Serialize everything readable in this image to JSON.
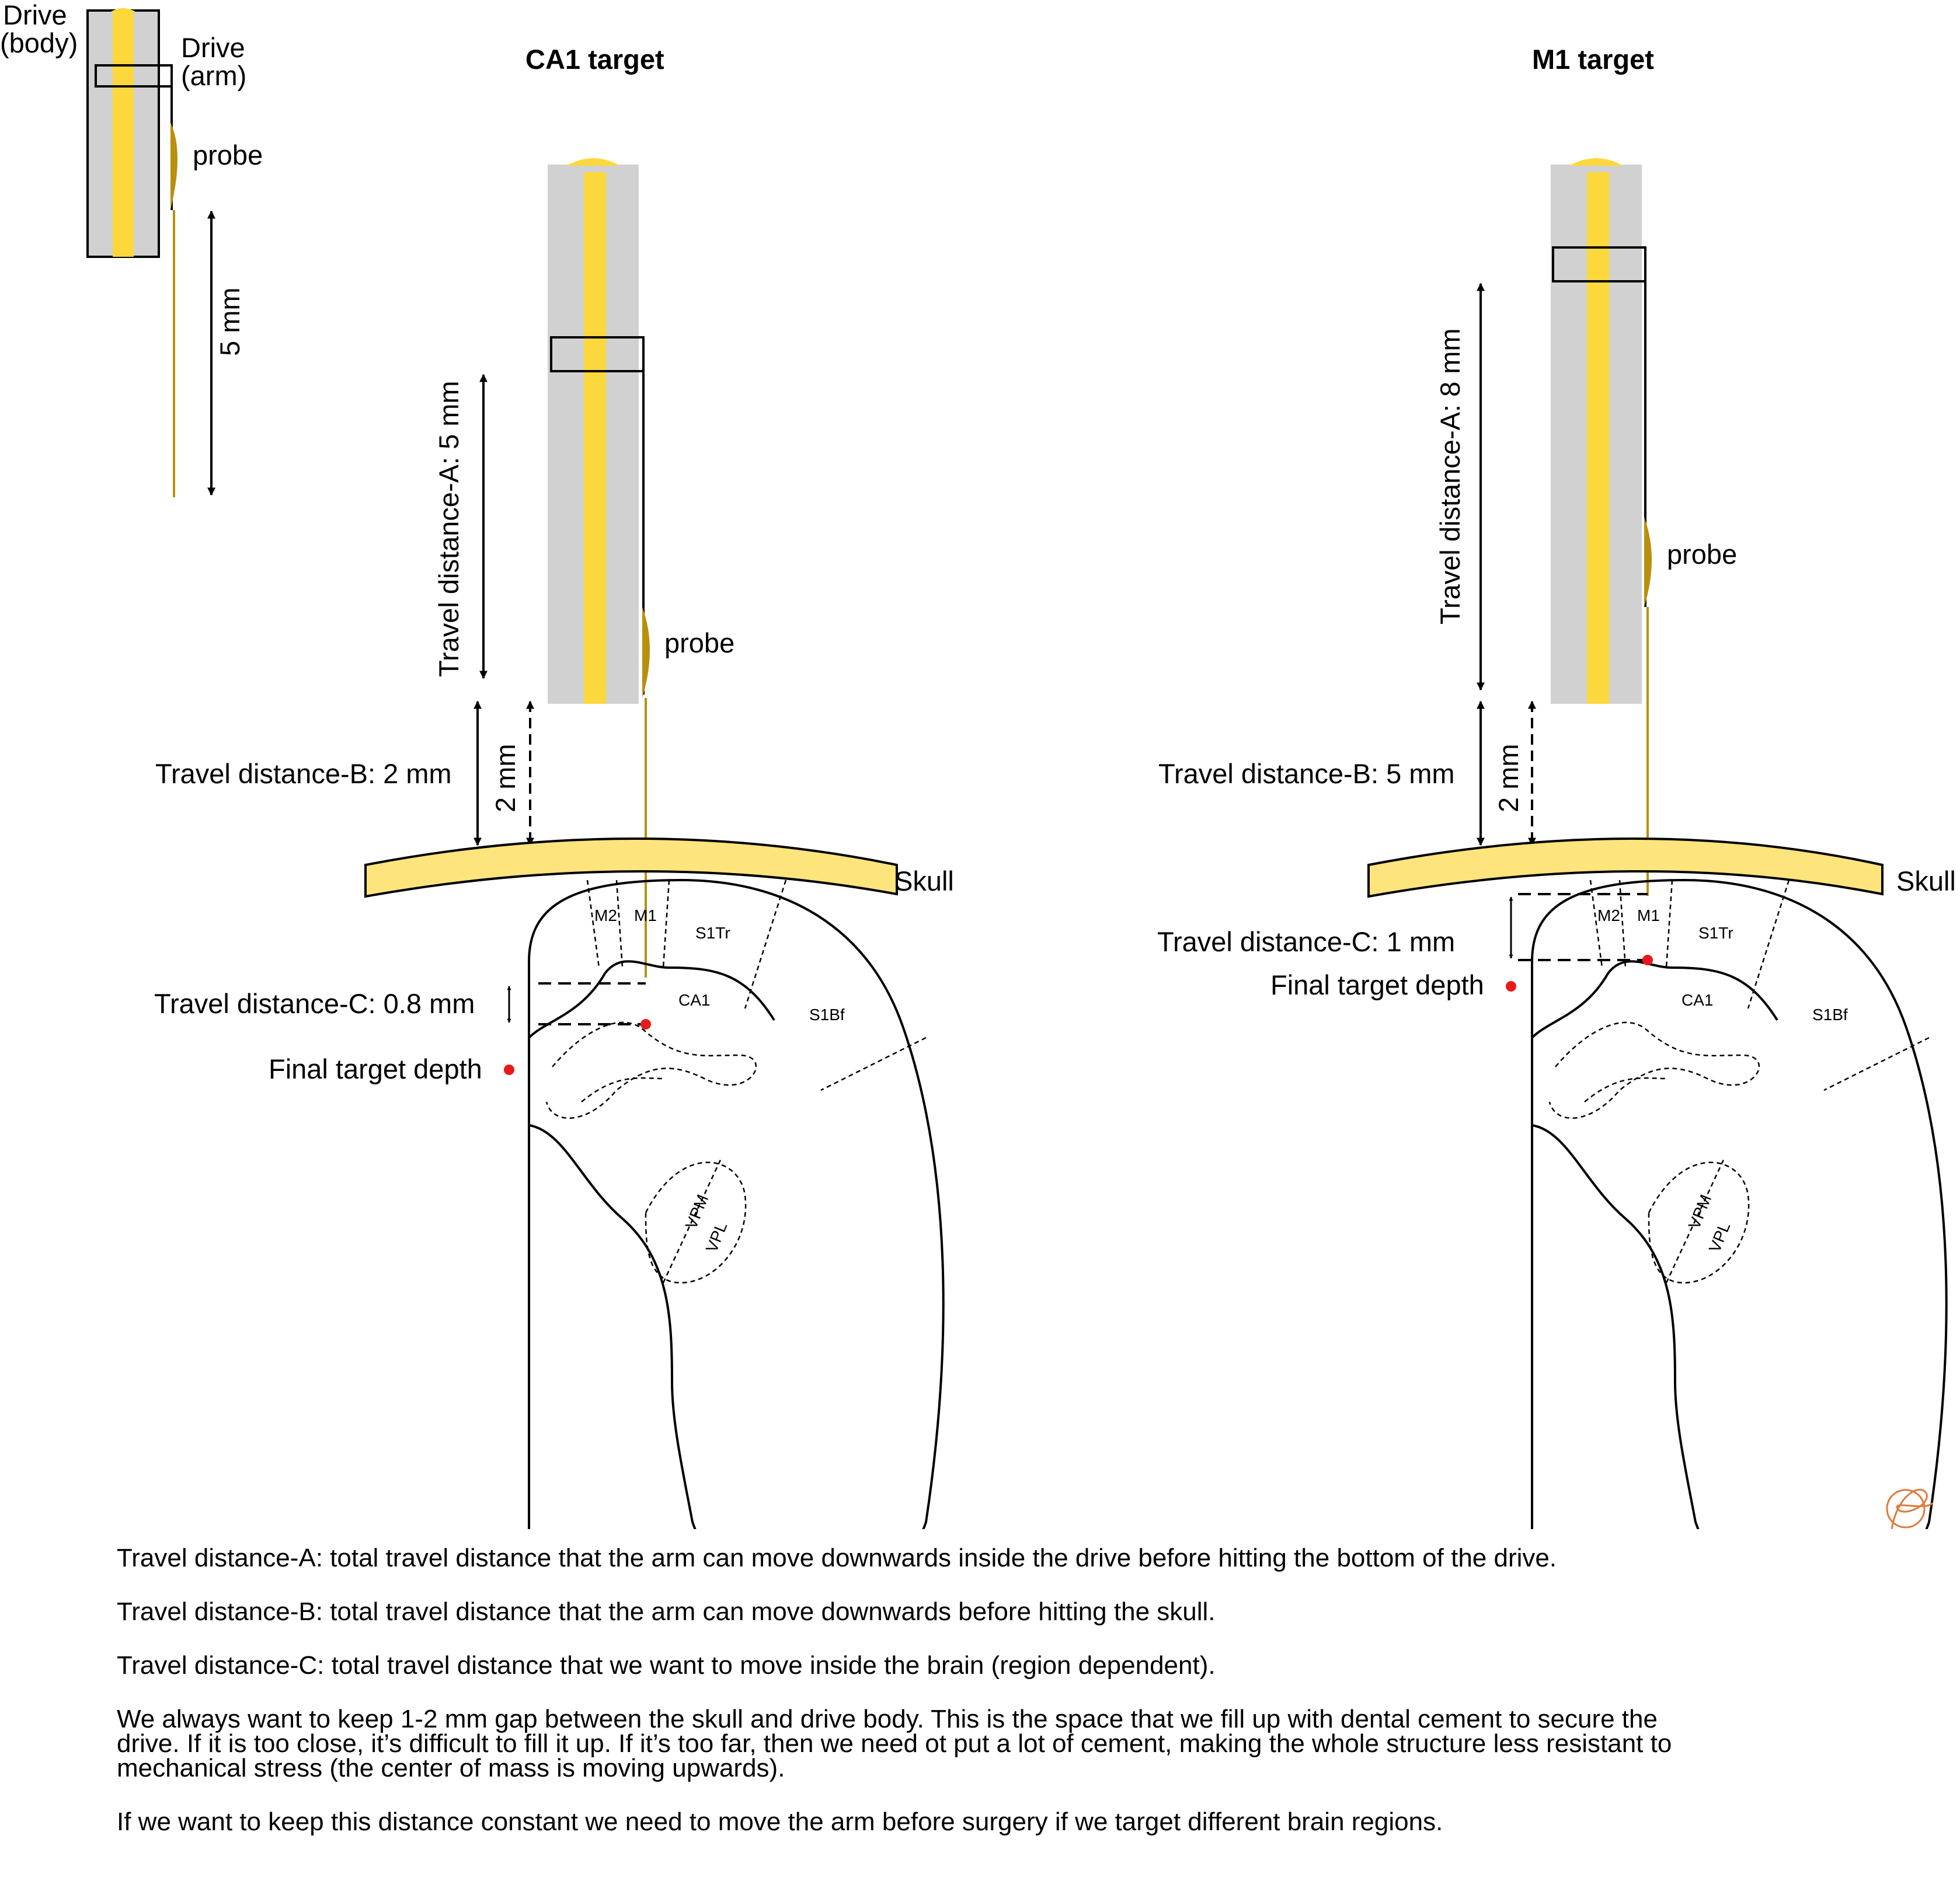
{
  "legend": {
    "drive_body": [
      "Drive",
      "(body)"
    ],
    "drive_arm": [
      "Drive",
      "(arm)"
    ],
    "probe": "probe",
    "length": "5 mm"
  },
  "panels": [
    {
      "title": "CA1 target",
      "travel_a": "Travel distance-A: 5 mm",
      "travel_b": "Travel distance-B: 2 mm",
      "gap": "2 mm",
      "travel_c": "Travel distance-C: 0.8 mm",
      "final_target": "Final target depth",
      "probe": "probe",
      "skull": "Skull"
    },
    {
      "title": "M1 target",
      "travel_a": "Travel distance-A: 8 mm",
      "travel_b": "Travel distance-B: 5 mm",
      "gap": "2 mm",
      "travel_c": "Travel distance-C: 1 mm",
      "final_target": "Final target depth",
      "probe": "probe",
      "skull": "Skull"
    }
  ],
  "regions": {
    "m2": "M2",
    "m1": "M1",
    "s1tr": "S1Tr",
    "s1bf": "S1Bf",
    "ca1": "CA1",
    "vpm": "VPM",
    "vpl": "VPL"
  },
  "colors": {
    "drive_body": "#d1d1d1",
    "drive_rail": "#fdd83c",
    "skull": "#fde47c",
    "probe": "#b8900d",
    "target": "#e8191a"
  },
  "notes": [
    "Travel distance-A: total travel distance that the arm can move downwards inside the drive before hitting the bottom of the drive.",
    "Travel distance-B: total travel distance that the arm can move downwards before hitting the skull.",
    "Travel distance-C: total travel distance that we want to move inside the brain (region dependent).",
    "We always want to keep 1-2 mm gap between the skull and drive body. This is the space that we fill up with dental cement to secure the",
    "drive. If it is too close, it’s difficult to fill it up. If it’s too far, then we need ot put a lot of cement, making the whole structure less resistant to",
    "mechanical stress (the center of mass is moving upwards).",
    "If we want to keep this distance constant we need to move the arm before surgery if we target different brain regions."
  ]
}
